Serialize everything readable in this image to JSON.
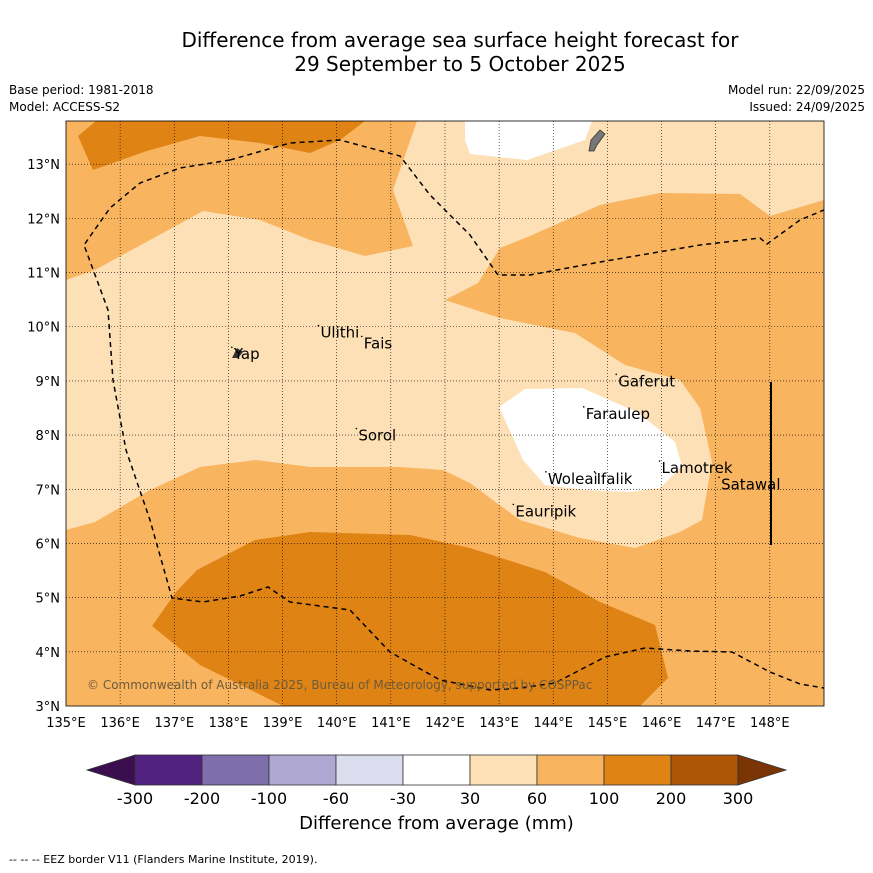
{
  "title": {
    "line1": "Difference from average sea surface height forecast for",
    "line2": "29 September to 5 October 2025"
  },
  "meta": {
    "base_period": "Base period: 1981-2018",
    "model": "Model: ACCESS-S2",
    "model_run": "Model run: 22/09/2025",
    "issued": "Issued: 24/09/2025"
  },
  "map": {
    "lon_range": [
      135,
      149
    ],
    "lat_range": [
      3,
      13.8
    ],
    "lon_ticks": [
      "135°E",
      "136°E",
      "137°E",
      "138°E",
      "139°E",
      "140°E",
      "141°E",
      "142°E",
      "143°E",
      "144°E",
      "145°E",
      "146°E",
      "147°E",
      "148°E"
    ],
    "lat_ticks": [
      "3°N",
      "4°N",
      "5°N",
      "6°N",
      "7°N",
      "8°N",
      "9°N",
      "10°N",
      "11°N",
      "12°N",
      "13°N"
    ],
    "places": [
      {
        "name": "Ulithi",
        "lon": 139.7,
        "lat": 9.8
      },
      {
        "name": "Fais",
        "lon": 140.5,
        "lat": 9.6
      },
      {
        "name": "Yap",
        "lon": 138.1,
        "lat": 9.4
      },
      {
        "name": "Gaferut",
        "lon": 145.2,
        "lat": 8.9
      },
      {
        "name": "Faraulep",
        "lon": 144.6,
        "lat": 8.3
      },
      {
        "name": "Sorol",
        "lon": 140.4,
        "lat": 7.9
      },
      {
        "name": "Lamotrek",
        "lon": 146.0,
        "lat": 7.3
      },
      {
        "name": "Satawal",
        "lon": 147.1,
        "lat": 7.0
      },
      {
        "name": "Woleai",
        "lon": 143.9,
        "lat": 7.1
      },
      {
        "name": "Ifalik",
        "lon": 144.8,
        "lat": 7.1
      },
      {
        "name": "Eauripik",
        "lon": 143.3,
        "lat": 6.5
      }
    ],
    "copyright": "© Commonwealth of Australia 2025, Bureau of Meteorology, supported by COSPPac"
  },
  "colorbar": {
    "labels": [
      "-300",
      "-200",
      "-100",
      "-60",
      "-30",
      "30",
      "60",
      "100",
      "200",
      "300"
    ],
    "colors": [
      "#3b0f4f",
      "#51227f",
      "#7e6eab",
      "#afa8d2",
      "#dcdcef",
      "#ffffff",
      "#fde0b5",
      "#f9b460",
      "#e08315",
      "#ae5506",
      "#7b3406"
    ],
    "title": "Difference from average (mm)"
  },
  "footer": "--  --  -- EEZ border V11 (Flanders Marine Institute, 2019)."
}
